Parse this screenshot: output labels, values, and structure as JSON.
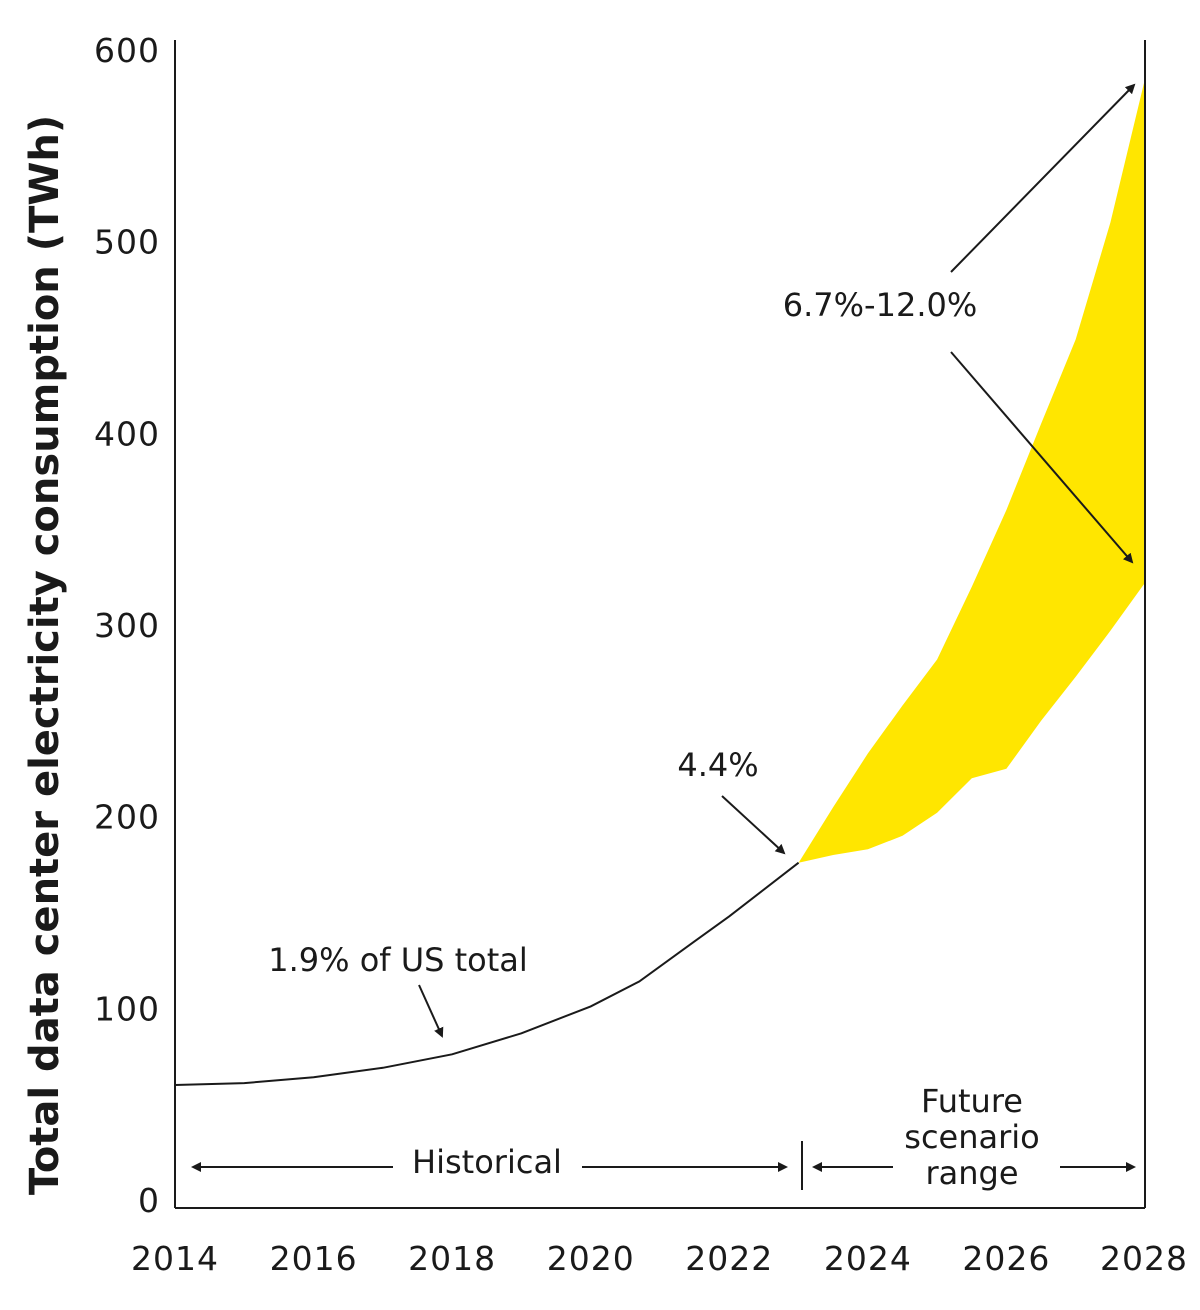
{
  "chart_data": {
    "type": "area",
    "title": "",
    "xlabel": "",
    "ylabel": "Total data center electricity consumption (TWh)",
    "xlim": [
      2014,
      2028
    ],
    "ylim": [
      0,
      600
    ],
    "x_ticks": [
      "2014",
      "2016",
      "2018",
      "2020",
      "2022",
      "2024",
      "2026",
      "2028"
    ],
    "y_ticks": [
      "0",
      "100",
      "200",
      "300",
      "400",
      "500",
      "600"
    ],
    "grid": false,
    "series": [
      {
        "type": "line",
        "color": "#1a1a1a",
        "x": [
          2014,
          2015,
          2016,
          2017,
          2018,
          2019,
          2020,
          2020.7,
          2021.5,
          2022,
          2023
        ],
        "y": [
          60,
          61,
          64,
          69,
          76,
          87,
          101,
          114,
          135,
          148,
          176
        ]
      },
      {
        "type": "band",
        "color": "#FFE600",
        "x": [
          2023,
          2023.5,
          2024,
          2024.5,
          2025,
          2025.5,
          2026,
          2026.5,
          2027,
          2027.5,
          2028
        ],
        "y_low": [
          176,
          180,
          183,
          190,
          202,
          220,
          225,
          250,
          273,
          297,
          322
        ],
        "y_high": [
          176,
          205,
          233,
          258,
          282,
          320,
          360,
          405,
          449,
          510,
          585
        ]
      }
    ],
    "annotations": {
      "hist_share": "1.9% of US total",
      "share_2023": "4.4%",
      "share_2028": "6.7%-12.0%",
      "historical": "Historical",
      "future_line1": "Future",
      "future_line2": "scenario",
      "future_line3": "range"
    }
  }
}
